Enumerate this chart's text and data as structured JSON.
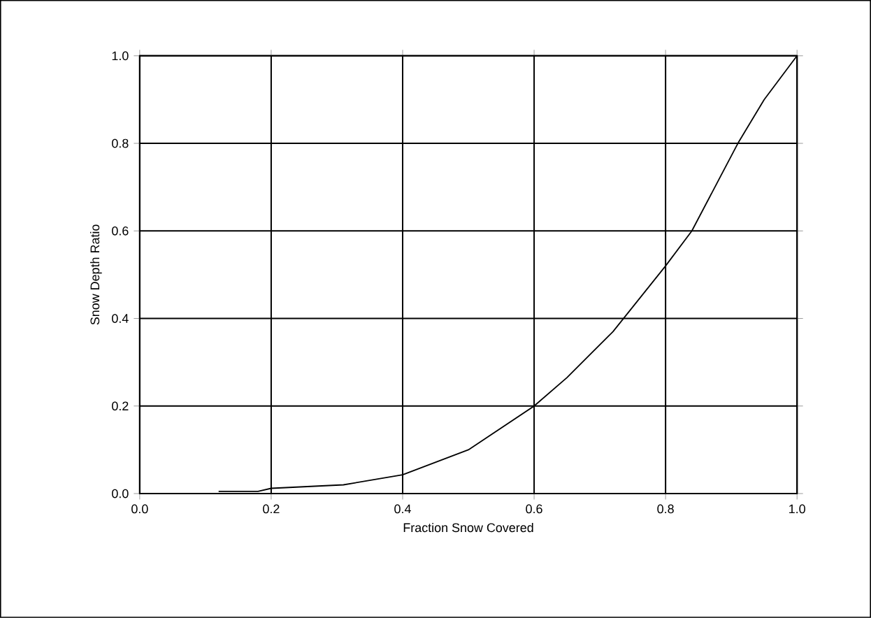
{
  "chart_data": {
    "type": "line",
    "xlabel": "Fraction Snow Covered",
    "ylabel": "Snow Depth Ratio",
    "x": [
      0.12,
      0.18,
      0.2,
      0.31,
      0.4,
      0.5,
      0.6,
      0.65,
      0.72,
      0.8,
      0.84,
      0.91,
      0.95,
      1.0
    ],
    "values": [
      0.005,
      0.005,
      0.012,
      0.02,
      0.043,
      0.1,
      0.2,
      0.265,
      0.37,
      0.52,
      0.6,
      0.8,
      0.9,
      1.0
    ],
    "color": "#000000",
    "xlim": [
      0,
      1
    ],
    "ylim": [
      0,
      1
    ],
    "xticks": [
      {
        "value": 0,
        "label": "0.0"
      },
      {
        "value": 0.2,
        "label": "0.2"
      },
      {
        "value": 0.4,
        "label": "0.4"
      },
      {
        "value": 0.6,
        "label": "0.6"
      },
      {
        "value": 0.8,
        "label": "0.8"
      },
      {
        "value": 1,
        "label": "1.0"
      }
    ],
    "yticks": [
      {
        "value": 0,
        "label": "0.0"
      },
      {
        "value": 0.2,
        "label": "0.2"
      },
      {
        "value": 0.4,
        "label": "0.4"
      },
      {
        "value": 0.6,
        "label": "0.6"
      },
      {
        "value": 0.8,
        "label": "0.8"
      },
      {
        "value": 1,
        "label": "1.0"
      }
    ],
    "grid": true
  }
}
